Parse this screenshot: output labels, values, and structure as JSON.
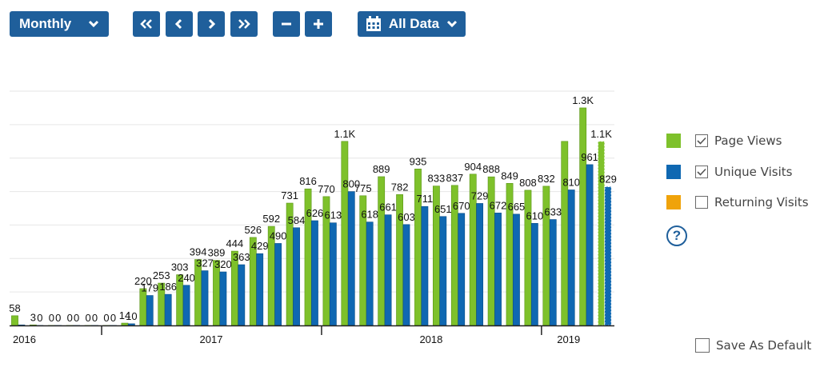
{
  "toolbar": {
    "period_label": "Monthly",
    "range_label": "All Data",
    "first_icon": "double-chevron-left-icon",
    "prev_icon": "chevron-left-icon",
    "next_icon": "chevron-right-icon",
    "last_icon": "double-chevron-right-icon",
    "zoom_out_icon": "minus-icon",
    "zoom_in_icon": "plus-icon",
    "calendar_icon": "calendar-icon"
  },
  "legend": {
    "items": [
      {
        "label": "Page Views",
        "checked": true,
        "color": "#7ec12b"
      },
      {
        "label": "Unique Visits",
        "checked": true,
        "color": "#0f68b2"
      },
      {
        "label": "Returning Visits",
        "checked": false,
        "color": "#f0a30a"
      }
    ]
  },
  "help_icon": "?",
  "save_default_label": "Save As Default",
  "chart_data": {
    "type": "bar",
    "years": [
      {
        "label": "2016",
        "from": 0,
        "to": 5
      },
      {
        "label": "2017",
        "from": 5,
        "to": 17
      },
      {
        "label": "2018",
        "from": 17,
        "to": 29
      },
      {
        "label": "2019",
        "from": 29,
        "to": 32
      }
    ],
    "series": [
      {
        "name": "Page Views",
        "color": "#7ec12b",
        "values": [
          58,
          3,
          0,
          0,
          0,
          0,
          14,
          220,
          253,
          303,
          394,
          389,
          444,
          526,
          592,
          731,
          816,
          770,
          1100,
          775,
          889,
          782,
          935,
          833,
          837,
          904,
          888,
          849,
          808,
          832,
          1100,
          1300,
          1100
        ],
        "labels": [
          "58",
          "3",
          "0",
          "0",
          "0",
          "0",
          "14",
          "220",
          "253",
          "303",
          "394",
          "389",
          "444",
          "526",
          "592",
          "731",
          "816",
          "770",
          "1.1K",
          "775",
          "889",
          "782",
          "935",
          "833",
          "837",
          "904",
          "888",
          "849",
          "808",
          "832",
          "",
          "1.3K",
          "1.1K"
        ]
      },
      {
        "name": "Unique Visits",
        "color": "#0f68b2",
        "values": [
          3,
          0,
          0,
          0,
          0,
          0,
          10,
          179,
          186,
          240,
          327,
          320,
          363,
          429,
          490,
          584,
          626,
          613,
          800,
          618,
          661,
          603,
          711,
          651,
          670,
          729,
          672,
          665,
          610,
          633,
          810,
          961,
          829
        ],
        "labels": [
          "",
          "0",
          "0",
          "0",
          "0",
          "0",
          "10",
          "179",
          "186",
          "240",
          "327",
          "320",
          "363",
          "429",
          "490",
          "584",
          "626",
          "613",
          "800",
          "618",
          "661",
          "603",
          "711",
          "651",
          "670",
          "729",
          "672",
          "665",
          "610",
          "633",
          "810",
          "961",
          "829"
        ]
      }
    ],
    "partial_last_period": true,
    "ylim": [
      0,
      1400
    ],
    "grid": true
  }
}
